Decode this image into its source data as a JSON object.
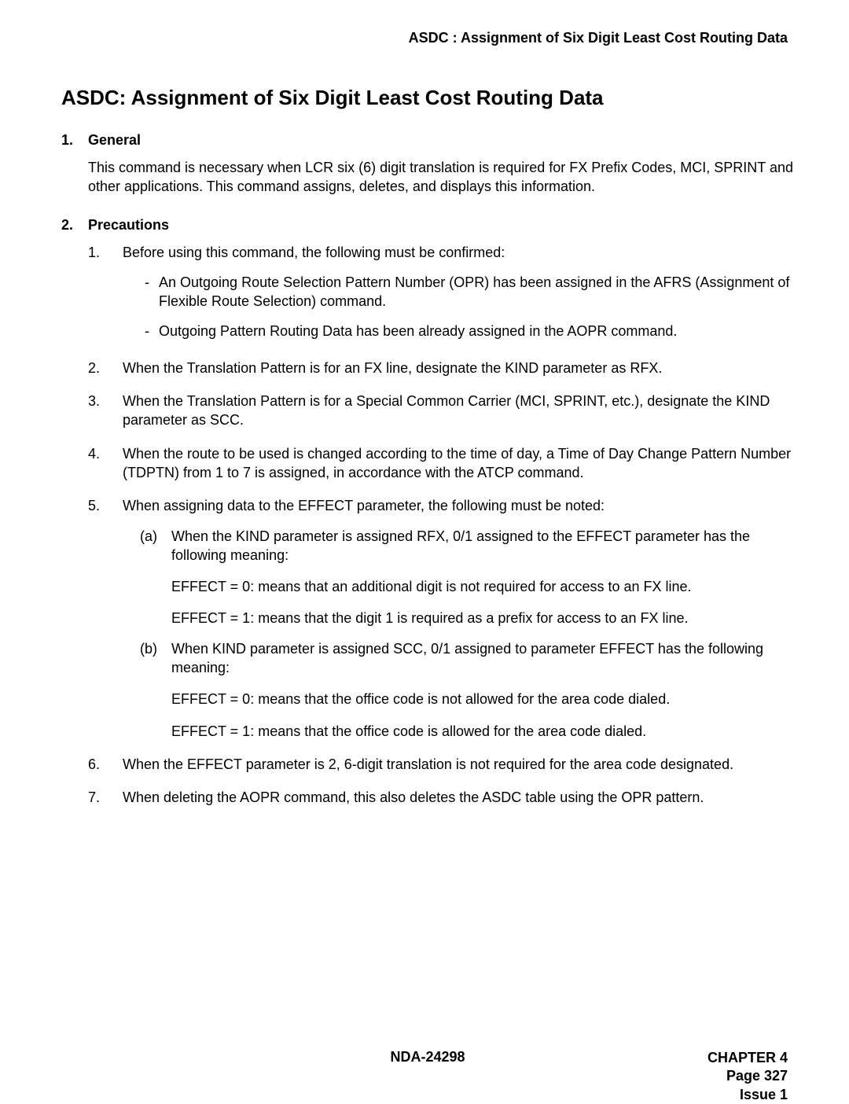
{
  "header": "ASDC : Assignment of Six Digit Least Cost Routing Data",
  "title": "ASDC: Assignment of Six Digit Least Cost Routing Data",
  "section1": {
    "num": "1.",
    "label": "General",
    "para": "This command is necessary when LCR six (6) digit translation is required for FX Prefix Codes, MCI, SPRINT and other applications. This command assigns, deletes, and displays this information."
  },
  "section2": {
    "num": "2.",
    "label": "Precautions",
    "items": [
      {
        "marker": "1.",
        "text": "Before using this command, the following must be confirmed:",
        "dashes": [
          "An Outgoing Route Selection Pattern Number (OPR) has been assigned in the AFRS (Assignment of Flexible Route Selection) command.",
          "Outgoing Pattern Routing Data has been already assigned in the AOPR command."
        ]
      },
      {
        "marker": "2.",
        "text": "When the Translation Pattern is for an FX line, designate the KIND parameter as RFX."
      },
      {
        "marker": "3.",
        "text": "When the Translation Pattern is for a Special Common Carrier (MCI, SPRINT, etc.), designate the KIND parameter as SCC."
      },
      {
        "marker": "4.",
        "text": "When the route to be used is changed according to the time of day, a Time of Day Change Pattern Number (TDPTN) from 1 to 7 is assigned, in accordance with the ATCP command."
      },
      {
        "marker": "5.",
        "text": "When assigning data to the EFFECT parameter, the following must be noted:",
        "letters": [
          {
            "mark": "(a)",
            "text": "When the KIND parameter is assigned RFX, 0/1 assigned to the EFFECT parameter has the following meaning:",
            "effects": [
              "EFFECT = 0: means that an additional digit is not required for access to an FX line.",
              "EFFECT = 1: means that the digit 1 is required as a prefix for access to an FX line."
            ]
          },
          {
            "mark": "(b)",
            "text": "When KIND parameter is assigned SCC, 0/1 assigned to parameter EFFECT has the following meaning:",
            "effects": [
              "EFFECT = 0: means that the office code is not allowed for the area code dialed.",
              "EFFECT = 1: means that the office code is allowed for the area code dialed."
            ]
          }
        ]
      },
      {
        "marker": "6.",
        "text": "When the EFFECT parameter is 2, 6-digit translation is not required for the area code designated."
      },
      {
        "marker": "7.",
        "text": "When deleting the AOPR command, this also deletes the ASDC table using the OPR pattern."
      }
    ]
  },
  "footer": {
    "center": "NDA-24298",
    "chapter": "CHAPTER 4",
    "page": "Page 327",
    "issue": "Issue 1"
  }
}
